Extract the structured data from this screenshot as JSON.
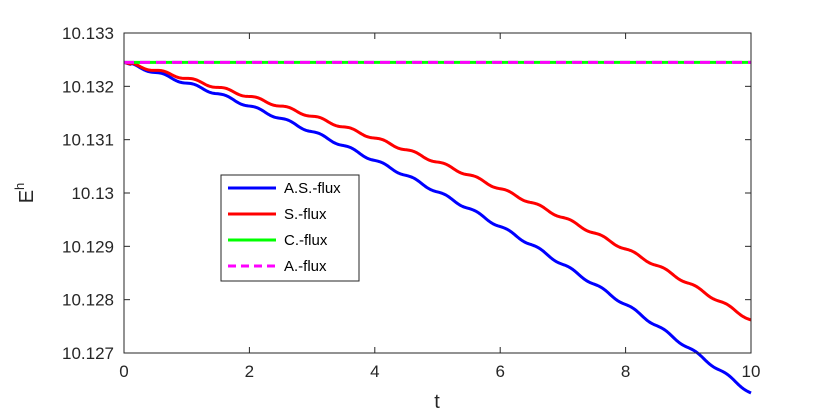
{
  "chart_data": {
    "type": "line",
    "title": "",
    "xlabel": "t",
    "ylabel": "E",
    "ylabel_superscript": "h",
    "xlim": [
      0,
      10
    ],
    "ylim": [
      10.127,
      10.133
    ],
    "xticks": [
      0,
      2,
      4,
      6,
      8,
      10
    ],
    "yticks": [
      10.127,
      10.128,
      10.129,
      10.13,
      10.131,
      10.132,
      10.133
    ],
    "ytick_labels": [
      "10.127",
      "10.128",
      "10.129",
      "10.13",
      "10.131",
      "10.132",
      "10.133"
    ],
    "grid": false,
    "legend_position": "center-left",
    "series": [
      {
        "name": "A.S.-flux",
        "color": "#0000ff",
        "dash": "solid",
        "x": [
          0,
          0.5,
          1,
          1.5,
          2,
          2.5,
          3,
          3.5,
          4,
          4.5,
          5,
          5.5,
          6,
          6.5,
          7,
          7.5,
          8,
          8.5,
          9,
          9.5,
          10
        ],
        "y": [
          10.13245,
          10.13226,
          10.13206,
          10.13186,
          10.13163,
          10.1314,
          10.13115,
          10.13089,
          10.13061,
          10.13033,
          10.13002,
          10.12971,
          10.12937,
          10.12903,
          10.12866,
          10.12829,
          10.12791,
          10.12751,
          10.1271,
          10.12668,
          10.12625
        ]
      },
      {
        "name": "S.-flux",
        "color": "#ff0000",
        "dash": "solid",
        "x": [
          0,
          0.5,
          1,
          1.5,
          2,
          2.5,
          3,
          3.5,
          4,
          4.5,
          5,
          5.5,
          6,
          6.5,
          7,
          7.5,
          8,
          8.5,
          9,
          9.5,
          10
        ],
        "y": [
          10.13245,
          10.1323,
          10.13215,
          10.13198,
          10.13181,
          10.13163,
          10.13144,
          10.13124,
          10.13103,
          10.13081,
          10.13058,
          10.13034,
          10.13008,
          10.12982,
          10.12954,
          10.12925,
          10.12895,
          10.12864,
          10.12831,
          10.12797,
          10.12762
        ]
      },
      {
        "name": "C.-flux",
        "color": "#00ff00",
        "dash": "solid",
        "x": [
          0,
          10
        ],
        "y": [
          10.13245,
          10.13245
        ]
      },
      {
        "name": "A.-flux",
        "color": "#ff00ff",
        "dash": "dashed",
        "x": [
          0,
          10
        ],
        "y": [
          10.13245,
          10.13245
        ]
      }
    ]
  }
}
